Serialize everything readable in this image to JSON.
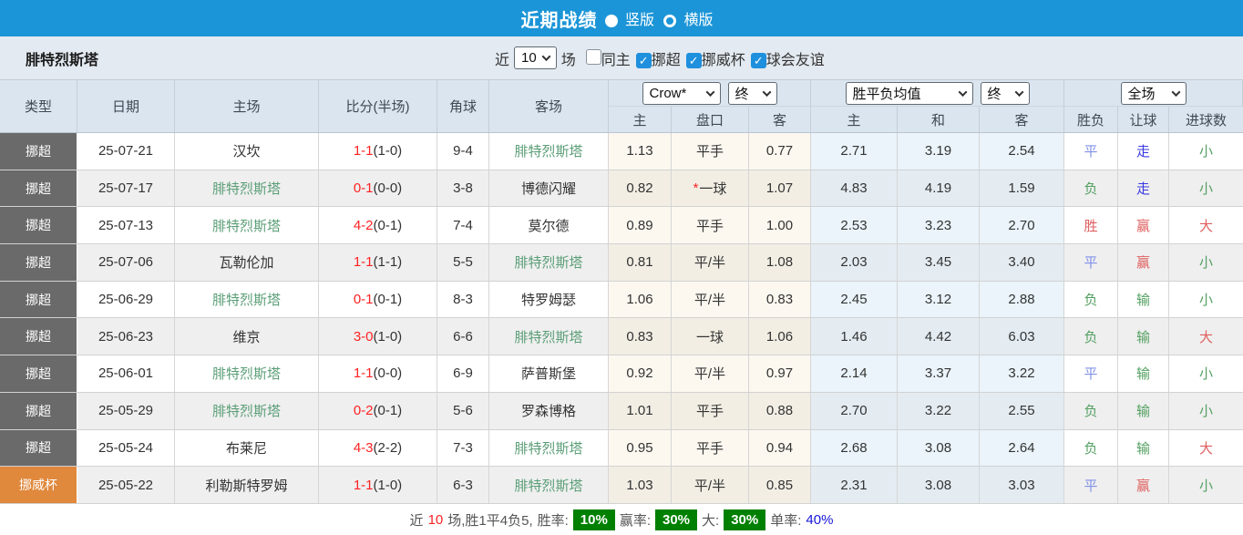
{
  "topbar": {
    "title": "近期战绩",
    "layout_options": [
      {
        "label": "竖版",
        "selected": true
      },
      {
        "label": "横版",
        "selected": false
      }
    ]
  },
  "filterbar": {
    "team": "腓特烈斯塔",
    "near_label": "近",
    "games_value": "10",
    "games_label": "场",
    "checkboxes": [
      {
        "label": "同主",
        "checked": false
      },
      {
        "label": "挪超",
        "checked": true
      },
      {
        "label": "挪威杯",
        "checked": true
      },
      {
        "label": "球会友谊",
        "checked": true
      }
    ]
  },
  "table": {
    "main_headers": [
      "类型",
      "日期",
      "主场",
      "比分(半场)",
      "角球",
      "客场"
    ],
    "sub_headers": [
      "主",
      "盘口",
      "客",
      "主",
      "和",
      "客",
      "胜负",
      "让球",
      "进球数"
    ],
    "selects": {
      "bookmaker": "Crow*",
      "bookmaker_time": "终",
      "mean": "胜平负均值",
      "mean_time": "终",
      "scope": "全场"
    },
    "rows": [
      {
        "type": "挪超",
        "type_kind": "league",
        "date": "25-07-21",
        "home": "汉坎",
        "home_focus": false,
        "score": "1-1",
        "half": "(1-0)",
        "corners": "9-4",
        "away": "腓特烈斯塔",
        "away_focus": true,
        "odds_home": "1.13",
        "handicap": "平手",
        "handicap_star": false,
        "odds_away": "0.77",
        "mean_home": "2.71",
        "mean_draw": "3.19",
        "mean_away": "2.54",
        "wdl": "平",
        "wdl_kind": "draw",
        "cover": "走",
        "cover_kind": "walk",
        "goals": "小",
        "goals_kind": "small"
      },
      {
        "type": "挪超",
        "type_kind": "league",
        "date": "25-07-17",
        "home": "腓特烈斯塔",
        "home_focus": true,
        "score": "0-1",
        "half": "(0-0)",
        "corners": "3-8",
        "away": "博德闪耀",
        "away_focus": false,
        "odds_home": "0.82",
        "handicap": "一球",
        "handicap_star": true,
        "odds_away": "1.07",
        "mean_home": "4.83",
        "mean_draw": "4.19",
        "mean_away": "1.59",
        "wdl": "负",
        "wdl_kind": "lose",
        "cover": "走",
        "cover_kind": "walk",
        "goals": "小",
        "goals_kind": "small"
      },
      {
        "type": "挪超",
        "type_kind": "league",
        "date": "25-07-13",
        "home": "腓特烈斯塔",
        "home_focus": true,
        "score": "4-2",
        "half": "(0-1)",
        "corners": "7-4",
        "away": "莫尔德",
        "away_focus": false,
        "odds_home": "0.89",
        "handicap": "平手",
        "handicap_star": false,
        "odds_away": "1.00",
        "mean_home": "2.53",
        "mean_draw": "3.23",
        "mean_away": "2.70",
        "wdl": "胜",
        "wdl_kind": "win",
        "cover": "赢",
        "cover_kind": "win",
        "goals": "大",
        "goals_kind": "big"
      },
      {
        "type": "挪超",
        "type_kind": "league",
        "date": "25-07-06",
        "home": "瓦勒伦加",
        "home_focus": false,
        "score": "1-1",
        "half": "(1-1)",
        "corners": "5-5",
        "away": "腓特烈斯塔",
        "away_focus": true,
        "odds_home": "0.81",
        "handicap": "平/半",
        "handicap_star": false,
        "odds_away": "1.08",
        "mean_home": "2.03",
        "mean_draw": "3.45",
        "mean_away": "3.40",
        "wdl": "平",
        "wdl_kind": "draw",
        "cover": "赢",
        "cover_kind": "win",
        "goals": "小",
        "goals_kind": "small"
      },
      {
        "type": "挪超",
        "type_kind": "league",
        "date": "25-06-29",
        "home": "腓特烈斯塔",
        "home_focus": true,
        "score": "0-1",
        "half": "(0-1)",
        "corners": "8-3",
        "away": "特罗姆瑟",
        "away_focus": false,
        "odds_home": "1.06",
        "handicap": "平/半",
        "handicap_star": false,
        "odds_away": "0.83",
        "mean_home": "2.45",
        "mean_draw": "3.12",
        "mean_away": "2.88",
        "wdl": "负",
        "wdl_kind": "lose",
        "cover": "输",
        "cover_kind": "lose",
        "goals": "小",
        "goals_kind": "small"
      },
      {
        "type": "挪超",
        "type_kind": "league",
        "date": "25-06-23",
        "home": "维京",
        "home_focus": false,
        "score": "3-0",
        "half": "(1-0)",
        "corners": "6-6",
        "away": "腓特烈斯塔",
        "away_focus": true,
        "odds_home": "0.83",
        "handicap": "一球",
        "handicap_star": false,
        "odds_away": "1.06",
        "mean_home": "1.46",
        "mean_draw": "4.42",
        "mean_away": "6.03",
        "wdl": "负",
        "wdl_kind": "lose",
        "cover": "输",
        "cover_kind": "lose",
        "goals": "大",
        "goals_kind": "big"
      },
      {
        "type": "挪超",
        "type_kind": "league",
        "date": "25-06-01",
        "home": "腓特烈斯塔",
        "home_focus": true,
        "score": "1-1",
        "half": "(0-0)",
        "corners": "6-9",
        "away": "萨普斯堡",
        "away_focus": false,
        "odds_home": "0.92",
        "handicap": "平/半",
        "handicap_star": false,
        "odds_away": "0.97",
        "mean_home": "2.14",
        "mean_draw": "3.37",
        "mean_away": "3.22",
        "wdl": "平",
        "wdl_kind": "draw",
        "cover": "输",
        "cover_kind": "lose",
        "goals": "小",
        "goals_kind": "small"
      },
      {
        "type": "挪超",
        "type_kind": "league",
        "date": "25-05-29",
        "home": "腓特烈斯塔",
        "home_focus": true,
        "score": "0-2",
        "half": "(0-1)",
        "corners": "5-6",
        "away": "罗森博格",
        "away_focus": false,
        "odds_home": "1.01",
        "handicap": "平手",
        "handicap_star": false,
        "odds_away": "0.88",
        "mean_home": "2.70",
        "mean_draw": "3.22",
        "mean_away": "2.55",
        "wdl": "负",
        "wdl_kind": "lose",
        "cover": "输",
        "cover_kind": "lose",
        "goals": "小",
        "goals_kind": "small"
      },
      {
        "type": "挪超",
        "type_kind": "league",
        "date": "25-05-24",
        "home": "布莱尼",
        "home_focus": false,
        "score": "4-3",
        "half": "(2-2)",
        "corners": "7-3",
        "away": "腓特烈斯塔",
        "away_focus": true,
        "odds_home": "0.95",
        "handicap": "平手",
        "handicap_star": false,
        "odds_away": "0.94",
        "mean_home": "2.68",
        "mean_draw": "3.08",
        "mean_away": "2.64",
        "wdl": "负",
        "wdl_kind": "lose",
        "cover": "输",
        "cover_kind": "lose",
        "goals": "大",
        "goals_kind": "big"
      },
      {
        "type": "挪威杯",
        "type_kind": "cup",
        "date": "25-05-22",
        "home": "利勒斯特罗姆",
        "home_focus": false,
        "score": "1-1",
        "half": "(1-0)",
        "corners": "6-3",
        "away": "腓特烈斯塔",
        "away_focus": true,
        "odds_home": "1.03",
        "handicap": "平/半",
        "handicap_star": false,
        "odds_away": "0.85",
        "mean_home": "2.31",
        "mean_draw": "3.08",
        "mean_away": "3.03",
        "wdl": "平",
        "wdl_kind": "draw",
        "cover": "赢",
        "cover_kind": "win",
        "goals": "小",
        "goals_kind": "small"
      }
    ]
  },
  "summary": {
    "near_label": "近",
    "count": "10",
    "tail": "场,胜1平4负5,",
    "win_rate_label": "胜率:",
    "win_rate": "10%",
    "cover_rate_label": "赢率:",
    "cover_rate": "30%",
    "big_rate_label": "大:",
    "big_rate": "30%",
    "single_rate_label": "单率:",
    "single_rate": "40%"
  },
  "colors": {
    "accent_blue": "#1b95d7",
    "header_bg": "#dbe5ef",
    "row_alt_bg": "#efefef",
    "league_type_bg": "#6a6a6a",
    "cup_type_bg": "#e0883c",
    "score_red": "#ff2222",
    "focus_team_green": "#5b9e77",
    "result_win_red": "#e05f5f",
    "result_draw_blue": "#8090e8",
    "result_lose_green": "#54a062",
    "result_walk_blue": "#3a3ae0",
    "badge_green": "#008000",
    "rate_blue": "#1515d9"
  }
}
